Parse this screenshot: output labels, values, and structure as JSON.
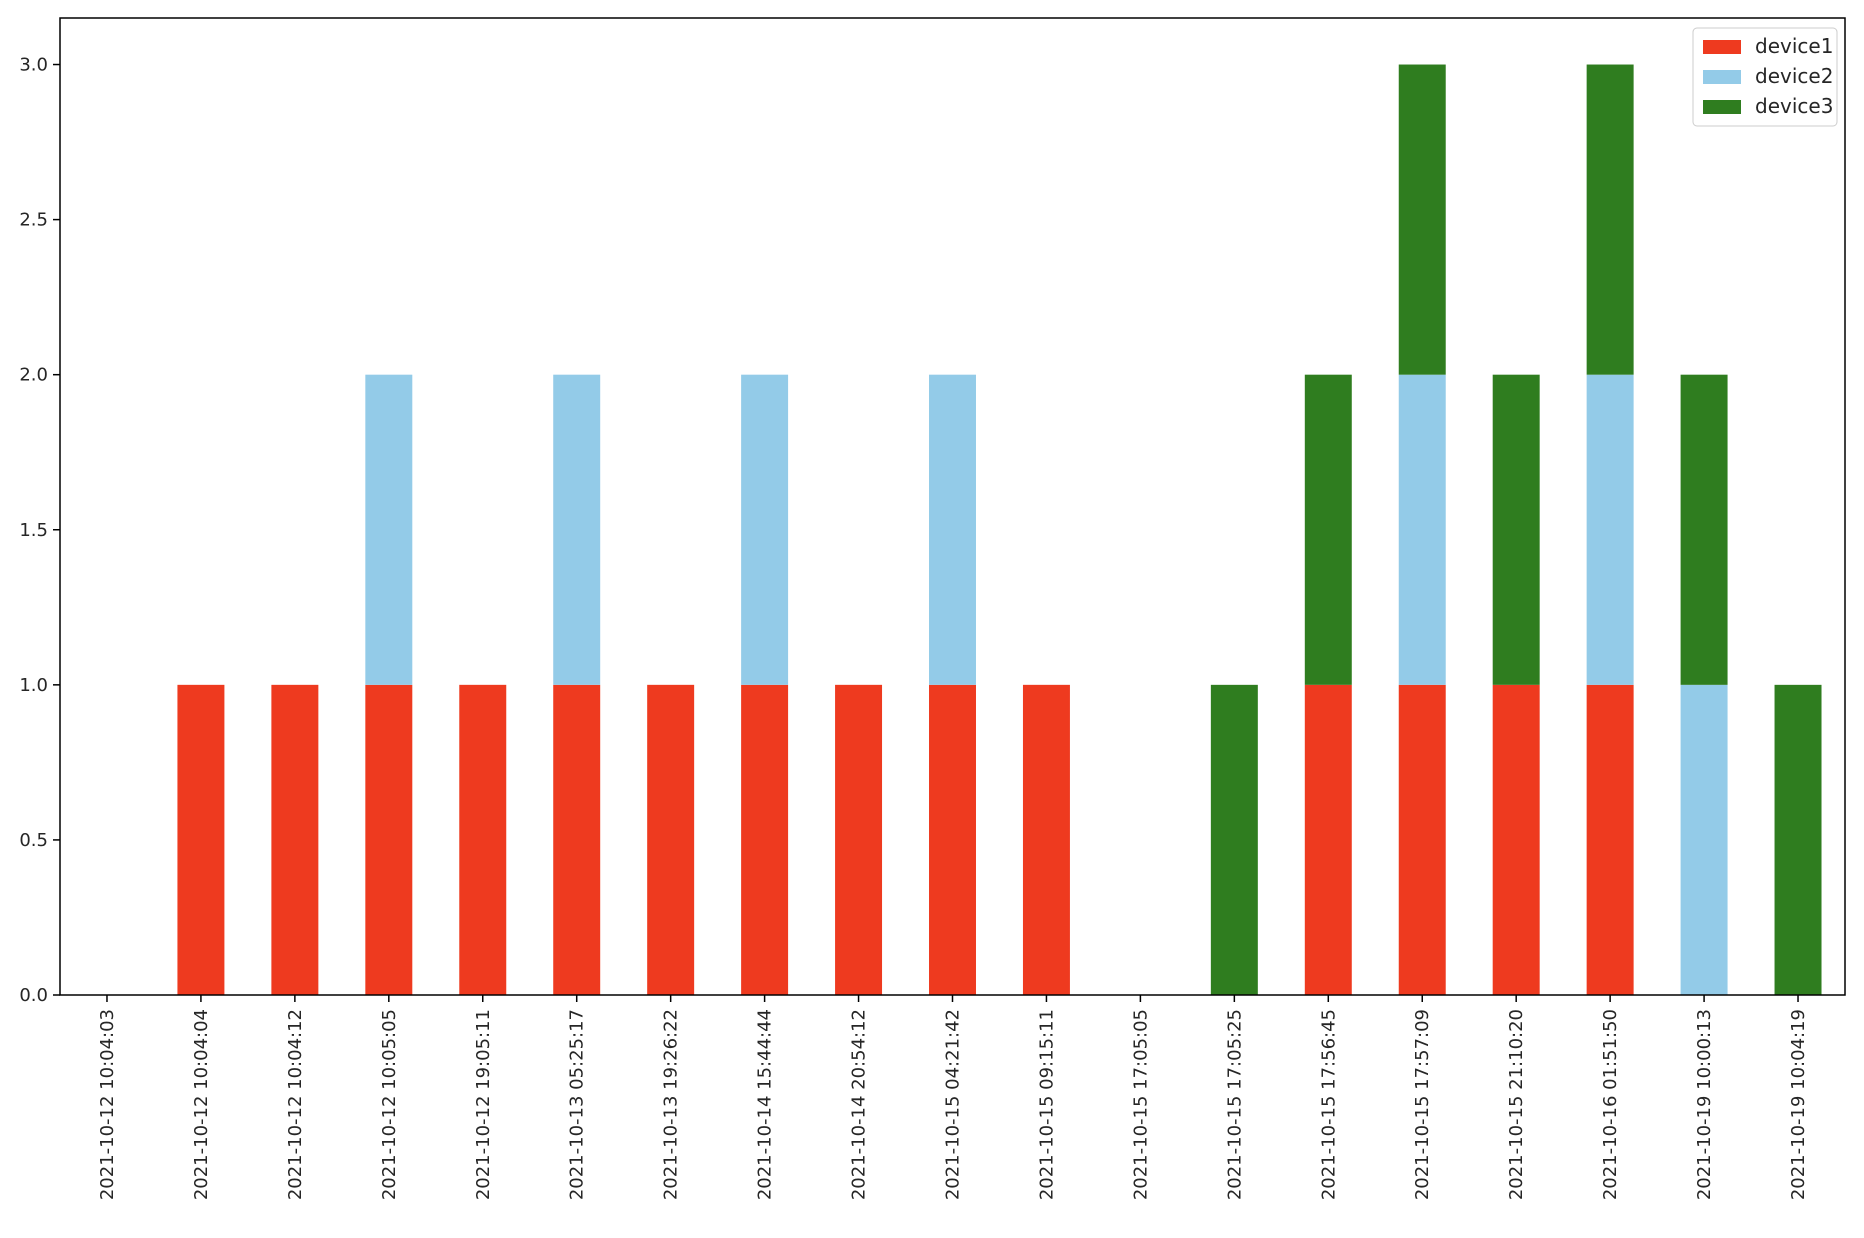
{
  "chart_data": {
    "type": "bar",
    "stacked": true,
    "title": "",
    "xlabel": "",
    "ylabel": "",
    "ylim": [
      0,
      3.15
    ],
    "yticks": [
      "0.0",
      "0.5",
      "1.0",
      "1.5",
      "2.0",
      "2.5",
      "3.0"
    ],
    "grid": false,
    "legend_position": "top-right",
    "categories": [
      "2021-10-12 10:04:03",
      "2021-10-12 10:04:04",
      "2021-10-12 10:04:12",
      "2021-10-12 10:05:05",
      "2021-10-12 19:05:11",
      "2021-10-13 05:25:17",
      "2021-10-13 19:26:22",
      "2021-10-14 15:44:44",
      "2021-10-14 20:54:12",
      "2021-10-15 04:21:42",
      "2021-10-15 09:15:11",
      "2021-10-15 17:05:05",
      "2021-10-15 17:05:25",
      "2021-10-15 17:56:45",
      "2021-10-15 17:57:09",
      "2021-10-15 21:10:20",
      "2021-10-16 01:51:50",
      "2021-10-19 10:00:13",
      "2021-10-19 10:04:19"
    ],
    "series": [
      {
        "name": "device1",
        "color": "#ee3a1f",
        "values": [
          0,
          1,
          1,
          1,
          1,
          1,
          1,
          1,
          1,
          1,
          1,
          0,
          0,
          1,
          1,
          1,
          1,
          0,
          0
        ]
      },
      {
        "name": "device2",
        "color": "#93cbe8",
        "values": [
          0,
          0,
          0,
          1,
          0,
          1,
          0,
          1,
          0,
          1,
          0,
          0,
          0,
          0,
          1,
          0,
          1,
          1,
          0
        ]
      },
      {
        "name": "device3",
        "color": "#2f7d1f",
        "values": [
          0,
          0,
          0,
          0,
          0,
          0,
          0,
          0,
          0,
          0,
          0,
          0,
          1,
          1,
          1,
          1,
          1,
          1,
          1
        ]
      }
    ]
  }
}
